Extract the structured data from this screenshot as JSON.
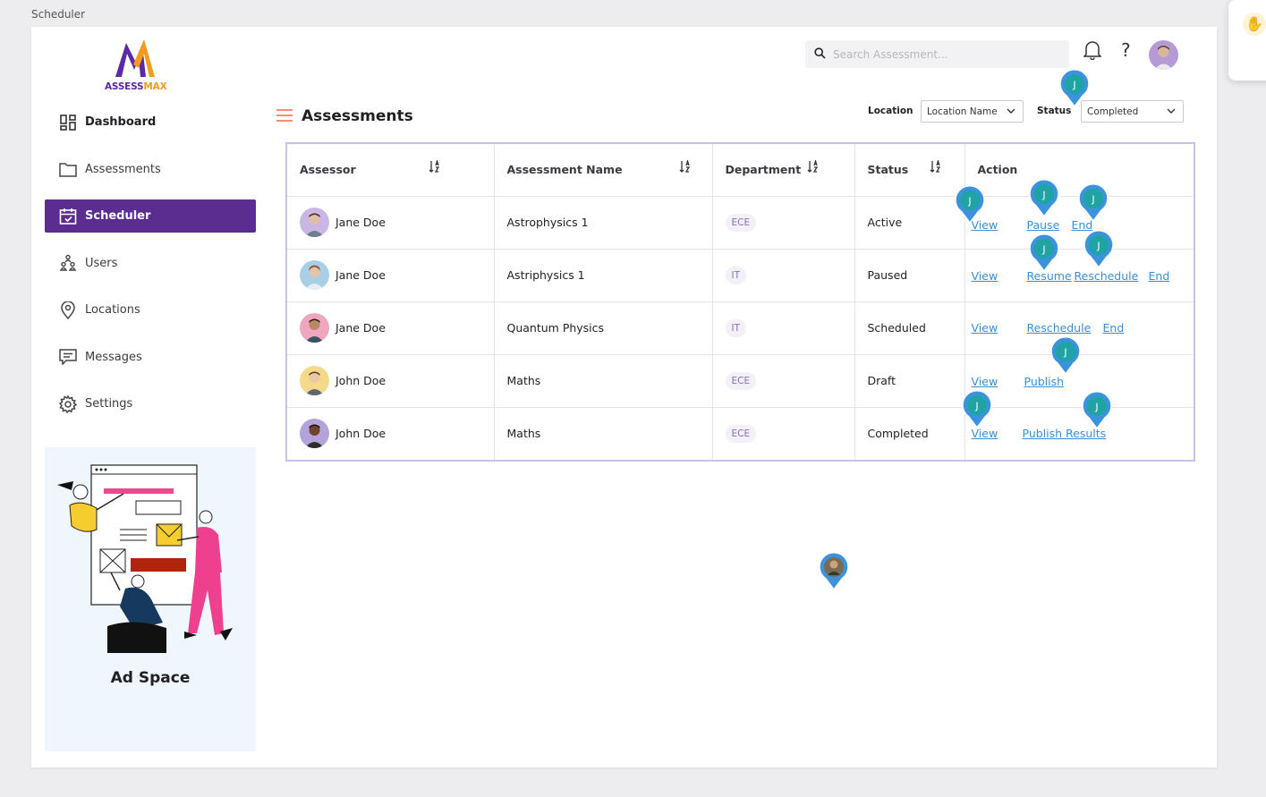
{
  "window": {
    "title": "Scheduler"
  },
  "brand": {
    "part1": "ASSESS",
    "part2": "MAX"
  },
  "sidebar": {
    "items": [
      {
        "label": "Dashboard",
        "icon": "dashboard-icon"
      },
      {
        "label": "Assessments",
        "icon": "folder-icon"
      },
      {
        "label": "Scheduler",
        "icon": "calendar-icon"
      },
      {
        "label": "Users",
        "icon": "users-icon"
      },
      {
        "label": "Locations",
        "icon": "location-pin-icon"
      },
      {
        "label": "Messages",
        "icon": "message-icon"
      },
      {
        "label": "Settings",
        "icon": "gear-icon"
      }
    ],
    "active": "Scheduler",
    "ad_title": "Ad Space"
  },
  "header": {
    "search_placeholder": "Search Assessment...",
    "help_symbol": "?"
  },
  "page": {
    "title": "Assessments",
    "filters": {
      "location_label": "Location",
      "location_value": "Location Name",
      "status_label": "Status",
      "status_value": "Completed"
    }
  },
  "table": {
    "columns": [
      "Assessor",
      "Assessment Name",
      "Department",
      "Status",
      "Action"
    ],
    "rows": [
      {
        "assessor": "Jane Doe",
        "name": "Astrophysics 1",
        "dept": "ECE",
        "status": "Active",
        "actions": [
          "View",
          "Pause",
          "End"
        ]
      },
      {
        "assessor": "Jane Doe",
        "name": "Astriphysics 1",
        "dept": "IT",
        "status": "Paused",
        "actions": [
          "View",
          "Resume",
          "Reschedule",
          "End"
        ]
      },
      {
        "assessor": "Jane Doe",
        "name": "Quantum Physics",
        "dept": "IT",
        "status": "Scheduled",
        "actions": [
          "View",
          "Reschedule",
          "End"
        ]
      },
      {
        "assessor": "John Doe",
        "name": "Maths",
        "dept": "ECE",
        "status": "Draft",
        "actions": [
          "View",
          "Publish"
        ]
      },
      {
        "assessor": "John Doe",
        "name": "Maths",
        "dept": "ECE",
        "status": "Completed",
        "actions": [
          "View",
          "Publish Results"
        ]
      }
    ]
  },
  "comment_pin_initial": "J",
  "colors": {
    "primary": "#5b2d91",
    "accent": "#f39a1f",
    "link": "#3a8fd6",
    "pin": "#3b93dd",
    "pin_inner": "#1fa3a3"
  }
}
